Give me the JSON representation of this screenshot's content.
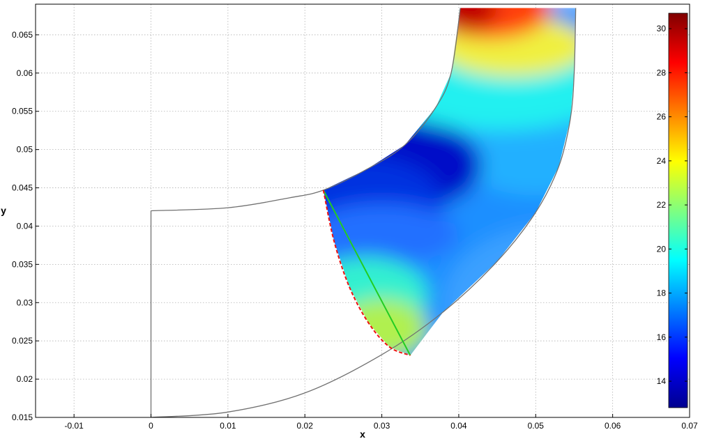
{
  "chart_data": {
    "type": "contour",
    "title": "",
    "xlabel": "x",
    "ylabel": "y",
    "xlim": [
      -0.015,
      0.07
    ],
    "ylim": [
      0.015,
      0.069
    ],
    "x_ticks": [
      "-0.01",
      "0",
      "0.01",
      "0.02",
      "0.03",
      "0.04",
      "0.05",
      "0.06",
      "0.07"
    ],
    "y_ticks": [
      "0.015",
      "0.02",
      "0.025",
      "0.03",
      "0.035",
      "0.04",
      "0.045",
      "0.05",
      "0.055",
      "0.06",
      "0.065"
    ],
    "grid": true,
    "colormap": "jet",
    "colorbar": {
      "range": [
        12.8,
        30.7
      ],
      "ticks": [
        "14",
        "16",
        "18",
        "20",
        "22",
        "24",
        "26",
        "28",
        "30"
      ],
      "placement": "right"
    },
    "series": [
      {
        "role": "outer-boundary",
        "color": "#707070",
        "points": [
          [
            0.0,
            0.015
          ],
          [
            0.01,
            0.0157
          ],
          [
            0.02,
            0.0182
          ],
          [
            0.03,
            0.0232
          ],
          [
            0.038,
            0.0288
          ],
          [
            0.045,
            0.0354
          ],
          [
            0.05,
            0.0418
          ],
          [
            0.053,
            0.0478
          ],
          [
            0.0545,
            0.054
          ],
          [
            0.055,
            0.06
          ],
          [
            0.0552,
            0.0685
          ]
        ]
      },
      {
        "role": "inner-boundary",
        "color": "#707070",
        "points": [
          [
            0.0,
            0.042
          ],
          [
            0.01,
            0.0424
          ],
          [
            0.018,
            0.0437
          ],
          [
            0.0224,
            0.0447
          ],
          [
            0.028,
            0.0474
          ],
          [
            0.033,
            0.0506
          ],
          [
            0.037,
            0.0555
          ],
          [
            0.039,
            0.06
          ],
          [
            0.0402,
            0.0685
          ]
        ]
      },
      {
        "role": "inlet-boundary",
        "color": "#707070",
        "points": [
          [
            0.0,
            0.015
          ],
          [
            0.0,
            0.042
          ]
        ]
      },
      {
        "role": "green-line",
        "color": "#22cc22",
        "points": [
          [
            0.0224,
            0.0447
          ],
          [
            0.0337,
            0.0231
          ]
        ]
      },
      {
        "role": "red-dashed-curve",
        "color": "#ee1111",
        "points": [
          [
            0.0224,
            0.0447
          ],
          [
            0.0238,
            0.038
          ],
          [
            0.0258,
            0.032
          ],
          [
            0.0283,
            0.0273
          ],
          [
            0.031,
            0.0242
          ],
          [
            0.0337,
            0.0231
          ]
        ]
      }
    ]
  }
}
